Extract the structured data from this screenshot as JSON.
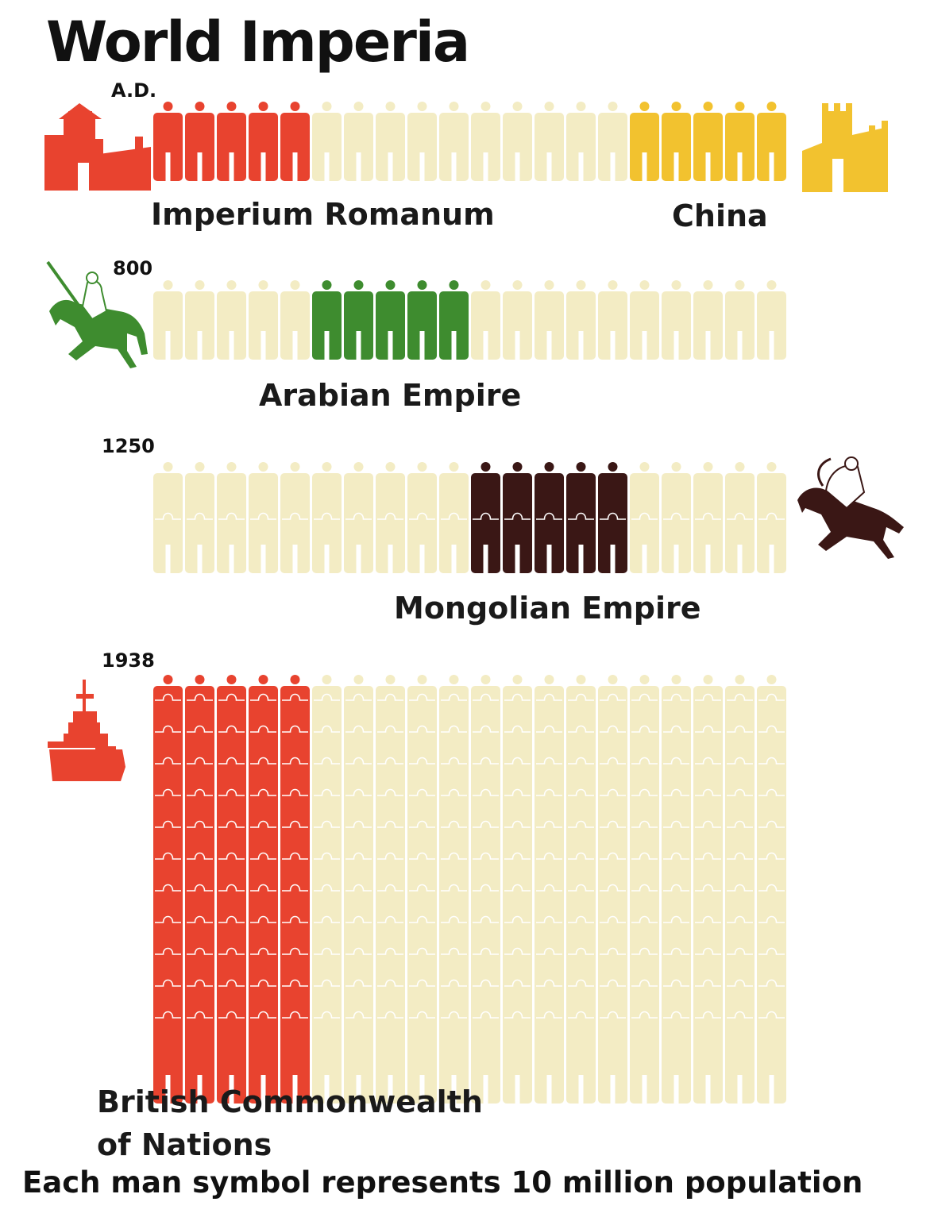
{
  "title": "World Imperia",
  "footnote": "Each man symbol represents 10 million population",
  "colors": {
    "background_figure": "#f3ecc4",
    "roman": "#e8432f",
    "china": "#f2c22f",
    "arabian": "#3e8c2f",
    "mongolian": "#3a1715",
    "british": "#e8432f"
  },
  "icons": {
    "rome": "roman-fortress-icon",
    "china": "great-wall-icon",
    "arabian": "arab-horseman-icon",
    "mongolian": "mongol-archer-icon",
    "british": "battleship-icon"
  },
  "chart_data": {
    "type": "pictogram",
    "unit": "Each man symbol represents 10 million population",
    "periods": [
      {
        "era": "A.D.",
        "world_columns": 20,
        "world_rows": 1,
        "empires": [
          {
            "name": "Imperium Romanum",
            "start_column": 0,
            "columns": 5,
            "rows": 1,
            "color": "#e8432f"
          },
          {
            "name": "China",
            "start_column": 15,
            "columns": 5,
            "rows": 1,
            "color": "#f2c22f"
          }
        ]
      },
      {
        "era": "800",
        "world_columns": 20,
        "world_rows": 1,
        "empires": [
          {
            "name": "Arabian Empire",
            "start_column": 5,
            "columns": 5,
            "rows": 1,
            "color": "#3e8c2f"
          }
        ]
      },
      {
        "era": "1250",
        "world_columns": 20,
        "world_rows": 2,
        "empires": [
          {
            "name": "Mongolian Empire",
            "start_column": 10,
            "columns": 5,
            "rows": 2,
            "color": "#3a1715"
          }
        ]
      },
      {
        "era": "1938",
        "world_columns": 20,
        "world_rows": 12,
        "empires": [
          {
            "name": "British Commonwealth of Nations",
            "start_column": 0,
            "columns": 5,
            "rows": 12,
            "color": "#e8432f"
          }
        ]
      }
    ]
  },
  "labels": {
    "roman": "Imperium Romanum",
    "china": "China",
    "arabian": "Arabian Empire",
    "mongolian": "Mongolian Empire",
    "british_line1": "British Commonwealth",
    "british_line2": "of Nations"
  }
}
